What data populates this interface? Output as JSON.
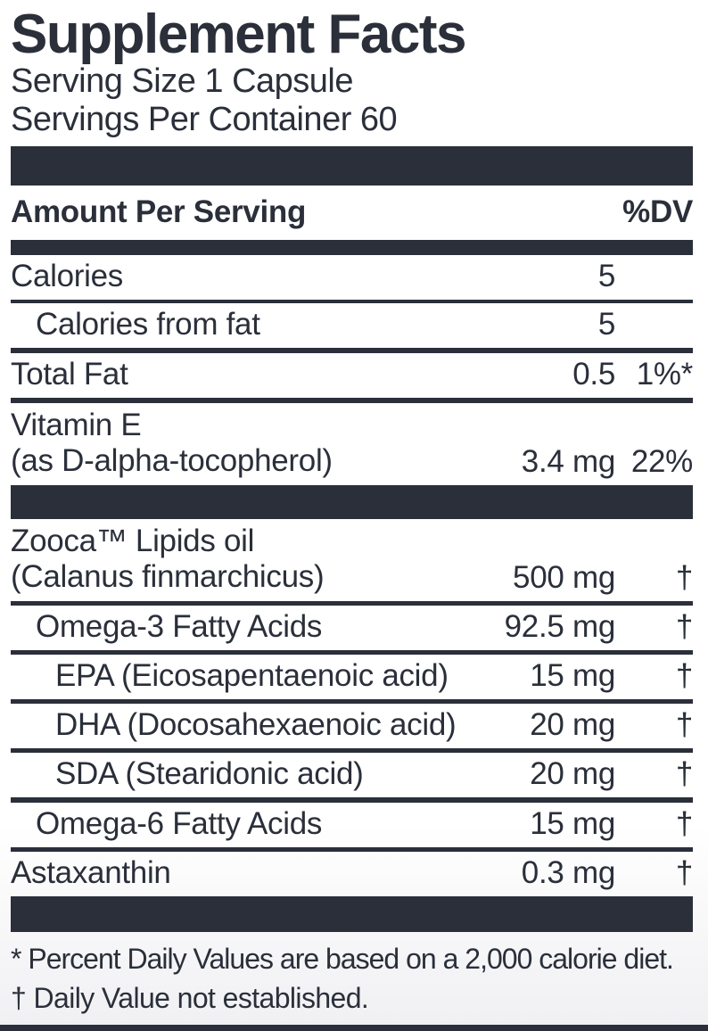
{
  "supplement_label": {
    "title": "Supplement Facts",
    "serving_size": "Serving Size 1 Capsule",
    "servings_per_container": "Servings Per Container 60",
    "columns": {
      "amount_header": "Amount Per Serving",
      "dv_header": "%DV"
    },
    "rows": [
      {
        "name": "Calories",
        "amount": "5",
        "dv": ""
      },
      {
        "name": "Calories from fat",
        "amount": "5",
        "dv": ""
      },
      {
        "name": "Total Fat",
        "amount": "0.5",
        "dv": "1%*"
      },
      {
        "name": "Vitamin E",
        "name2": "(as D-alpha-tocopherol)",
        "amount": "3.4 mg",
        "dv": "22%"
      },
      {
        "name": "Zooca™ Lipids oil",
        "name2": "(Calanus finmarchicus)",
        "amount": "500 mg",
        "dv": "†"
      },
      {
        "name": "Omega-3 Fatty Acids",
        "amount": "92.5 mg",
        "dv": "†"
      },
      {
        "name": "EPA (Eicosapentaenoic acid)",
        "amount": "15 mg",
        "dv": "†"
      },
      {
        "name": "DHA (Docosahexaenoic acid)",
        "amount": "20 mg",
        "dv": "†"
      },
      {
        "name": "SDA (Stearidonic acid)",
        "amount": "20 mg",
        "dv": "†"
      },
      {
        "name": "Omega-6 Fatty Acids",
        "amount": "15 mg",
        "dv": "†"
      },
      {
        "name": "Astaxanthin",
        "amount": "0.3 mg",
        "dv": "†"
      }
    ],
    "footnotes": [
      "* Percent Daily Values are based on a 2,000 calorie diet.",
      "† Daily Value not established."
    ],
    "colors": {
      "ink": "#2a2f3a",
      "background": "#ffffff"
    }
  }
}
